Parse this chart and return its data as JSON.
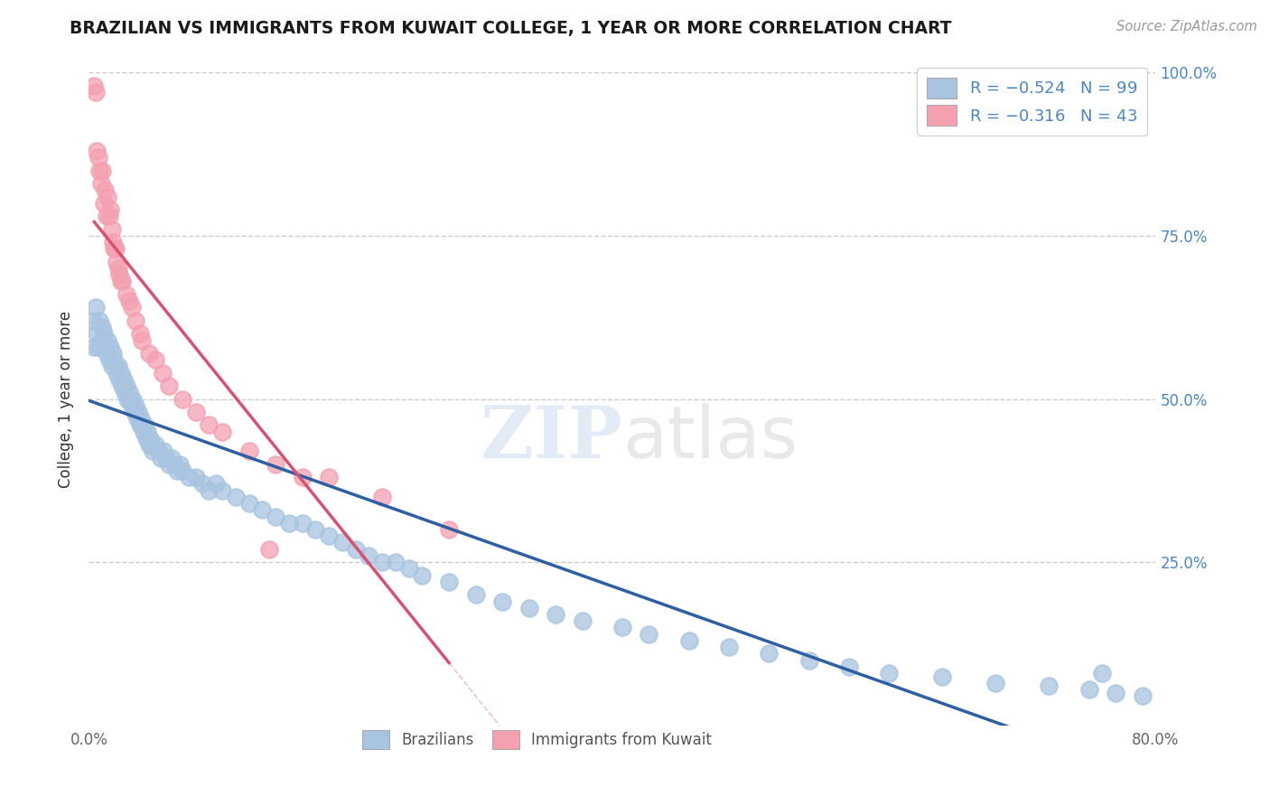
{
  "title": "BRAZILIAN VS IMMIGRANTS FROM KUWAIT COLLEGE, 1 YEAR OR MORE CORRELATION CHART",
  "source": "Source: ZipAtlas.com",
  "ylabel": "College, 1 year or more",
  "xlim": [
    0.0,
    0.8
  ],
  "ylim": [
    0.0,
    1.0
  ],
  "blue_R": -0.524,
  "blue_N": 99,
  "pink_R": -0.316,
  "pink_N": 43,
  "blue_color": "#a8c4e0",
  "pink_color": "#f4a0b0",
  "blue_line_color": "#2e5fa3",
  "pink_line_color": "#d95070",
  "legend_entries": [
    "Brazilians",
    "Immigrants from Kuwait"
  ],
  "grid_color": "#cccccc",
  "right_tick_color": "#4a86c8",
  "blue_x": [
    0.003,
    0.004,
    0.005,
    0.006,
    0.007,
    0.008,
    0.009,
    0.01,
    0.011,
    0.012,
    0.013,
    0.014,
    0.015,
    0.016,
    0.017,
    0.018,
    0.019,
    0.02,
    0.021,
    0.022,
    0.023,
    0.024,
    0.025,
    0.026,
    0.027,
    0.028,
    0.029,
    0.03,
    0.031,
    0.032,
    0.033,
    0.034,
    0.035,
    0.036,
    0.037,
    0.038,
    0.039,
    0.04,
    0.041,
    0.042,
    0.043,
    0.044,
    0.045,
    0.046,
    0.047,
    0.048,
    0.05,
    0.052,
    0.054,
    0.056,
    0.058,
    0.06,
    0.062,
    0.064,
    0.066,
    0.068,
    0.07,
    0.075,
    0.08,
    0.085,
    0.09,
    0.095,
    0.1,
    0.11,
    0.12,
    0.13,
    0.14,
    0.15,
    0.16,
    0.17,
    0.18,
    0.19,
    0.2,
    0.21,
    0.22,
    0.23,
    0.24,
    0.25,
    0.27,
    0.29,
    0.31,
    0.33,
    0.35,
    0.37,
    0.4,
    0.42,
    0.45,
    0.48,
    0.51,
    0.54,
    0.57,
    0.6,
    0.64,
    0.68,
    0.72,
    0.75,
    0.77,
    0.79,
    0.76
  ],
  "blue_y": [
    0.62,
    0.58,
    0.64,
    0.6,
    0.58,
    0.62,
    0.59,
    0.61,
    0.6,
    0.58,
    0.57,
    0.59,
    0.56,
    0.58,
    0.55,
    0.57,
    0.56,
    0.55,
    0.54,
    0.55,
    0.53,
    0.54,
    0.52,
    0.53,
    0.51,
    0.52,
    0.5,
    0.51,
    0.5,
    0.49,
    0.5,
    0.48,
    0.49,
    0.47,
    0.48,
    0.46,
    0.47,
    0.46,
    0.45,
    0.46,
    0.44,
    0.45,
    0.43,
    0.44,
    0.43,
    0.42,
    0.43,
    0.42,
    0.41,
    0.42,
    0.41,
    0.4,
    0.41,
    0.4,
    0.39,
    0.4,
    0.39,
    0.38,
    0.38,
    0.37,
    0.36,
    0.37,
    0.36,
    0.35,
    0.34,
    0.33,
    0.32,
    0.31,
    0.31,
    0.3,
    0.29,
    0.28,
    0.27,
    0.26,
    0.25,
    0.25,
    0.24,
    0.23,
    0.22,
    0.2,
    0.19,
    0.18,
    0.17,
    0.16,
    0.15,
    0.14,
    0.13,
    0.12,
    0.11,
    0.1,
    0.09,
    0.08,
    0.075,
    0.065,
    0.06,
    0.055,
    0.05,
    0.045,
    0.08
  ],
  "pink_x": [
    0.004,
    0.005,
    0.006,
    0.007,
    0.008,
    0.009,
    0.01,
    0.011,
    0.012,
    0.013,
    0.014,
    0.015,
    0.016,
    0.017,
    0.018,
    0.019,
    0.02,
    0.021,
    0.022,
    0.023,
    0.024,
    0.025,
    0.028,
    0.03,
    0.032,
    0.035,
    0.038,
    0.04,
    0.045,
    0.05,
    0.055,
    0.06,
    0.07,
    0.08,
    0.09,
    0.1,
    0.12,
    0.14,
    0.16,
    0.18,
    0.22,
    0.27,
    0.135
  ],
  "pink_y": [
    0.98,
    0.97,
    0.88,
    0.87,
    0.85,
    0.83,
    0.85,
    0.8,
    0.82,
    0.78,
    0.81,
    0.78,
    0.79,
    0.76,
    0.74,
    0.73,
    0.73,
    0.71,
    0.7,
    0.69,
    0.68,
    0.68,
    0.66,
    0.65,
    0.64,
    0.62,
    0.6,
    0.59,
    0.57,
    0.56,
    0.54,
    0.52,
    0.5,
    0.48,
    0.46,
    0.45,
    0.42,
    0.4,
    0.38,
    0.38,
    0.35,
    0.3,
    0.27
  ]
}
